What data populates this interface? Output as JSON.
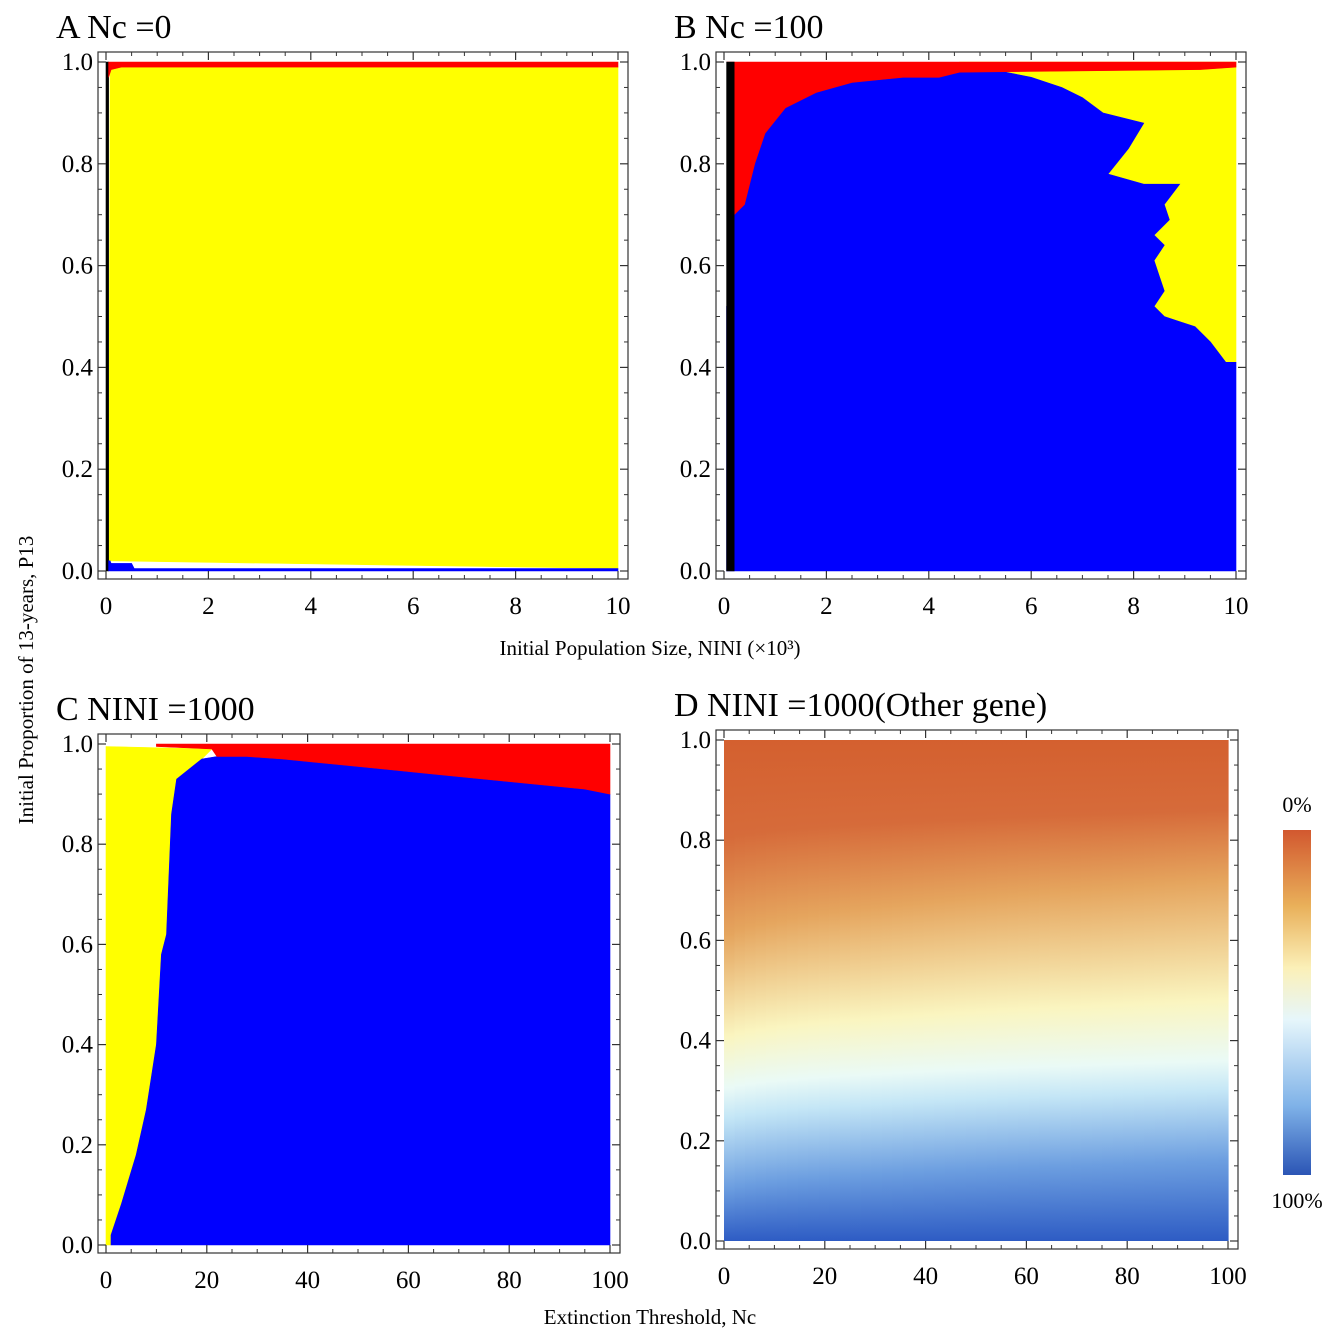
{
  "figure": {
    "y_axis_label": "Initial Proportion of 13-years, P13",
    "x_axis_label_top": "Initial Population Size, NINI (×10³)",
    "x_axis_label_bottom": "Extinction Threshold, Nc",
    "colorbar": {
      "top_label": "0%",
      "bottom_label": "100%",
      "colors": [
        "#2b55b5",
        "#7fb2e8",
        "#e6f6fb",
        "#fbf0b8",
        "#e9b05a",
        "#d2582f"
      ]
    }
  },
  "colors": {
    "yellow": "#ffff00",
    "blue": "#0000ff",
    "red": "#ff0000",
    "black": "#000000"
  },
  "chart_data": [
    {
      "panel": "A",
      "title": "A  Nc =0",
      "type": "heatmap",
      "x_range": [
        0,
        10
      ],
      "y_range": [
        0,
        1
      ],
      "x_ticks": [
        "0",
        "2",
        "4",
        "6",
        "8",
        "10"
      ],
      "y_ticks": [
        "0.0",
        "0.2",
        "0.4",
        "0.6",
        "0.8",
        "1.0"
      ],
      "regions": [
        {
          "color": "yellow",
          "polygon": [
            [
              0.05,
              0.02
            ],
            [
              10,
              0.005
            ],
            [
              10,
              0.99
            ],
            [
              0.08,
              0.99
            ]
          ]
        },
        {
          "color": "black",
          "polygon": [
            [
              0,
              0
            ],
            [
              0.05,
              0
            ],
            [
              0.05,
              1
            ],
            [
              0,
              1
            ]
          ]
        },
        {
          "color": "blue",
          "polygon": [
            [
              0.05,
              0
            ],
            [
              10,
              0
            ],
            [
              10,
              0.005
            ],
            [
              0.55,
              0.005
            ],
            [
              0.5,
              0.015
            ],
            [
              0.1,
              0.015
            ],
            [
              0.08,
              0.02
            ],
            [
              0.05,
              0.02
            ]
          ]
        },
        {
          "color": "red",
          "polygon": [
            [
              0.05,
              1
            ],
            [
              10,
              1
            ],
            [
              10,
              0.99
            ],
            [
              0.3,
              0.99
            ],
            [
              0.1,
              0.985
            ],
            [
              0.05,
              0.97
            ]
          ]
        }
      ]
    },
    {
      "panel": "B",
      "title": "B  Nc =100",
      "type": "heatmap",
      "x_range": [
        0,
        10
      ],
      "y_range": [
        0,
        1
      ],
      "x_ticks": [
        "0",
        "2",
        "4",
        "6",
        "8",
        "10"
      ],
      "y_ticks": [
        "0.0",
        "0.2",
        "0.4",
        "0.6",
        "0.8",
        "1.0"
      ],
      "regions": [
        {
          "color": "yellow",
          "polygon": [
            [
              4.6,
              1
            ],
            [
              10,
              1
            ],
            [
              10,
              0.41
            ],
            [
              9.8,
              0.41
            ],
            [
              9.5,
              0.45
            ],
            [
              9.2,
              0.48
            ],
            [
              8.9,
              0.49
            ],
            [
              8.6,
              0.5
            ],
            [
              8.4,
              0.52
            ],
            [
              8.6,
              0.55
            ],
            [
              8.5,
              0.58
            ],
            [
              8.4,
              0.61
            ],
            [
              8.6,
              0.64
            ],
            [
              8.4,
              0.66
            ],
            [
              8.7,
              0.69
            ],
            [
              8.6,
              0.72
            ],
            [
              8.9,
              0.76
            ],
            [
              8.2,
              0.76
            ],
            [
              7.5,
              0.78
            ],
            [
              7.9,
              0.83
            ],
            [
              8.2,
              0.88
            ],
            [
              7.4,
              0.9
            ],
            [
              7.0,
              0.93
            ],
            [
              6.6,
              0.95
            ],
            [
              6.0,
              0.97
            ],
            [
              5.5,
              0.98
            ],
            [
              4.6,
              0.98
            ]
          ]
        },
        {
          "color": "blue",
          "polygon": [
            [
              0.05,
              0
            ],
            [
              10,
              0
            ],
            [
              10,
              0.41
            ],
            [
              9.8,
              0.41
            ],
            [
              9.5,
              0.45
            ],
            [
              9.2,
              0.48
            ],
            [
              8.9,
              0.49
            ],
            [
              8.6,
              0.5
            ],
            [
              8.4,
              0.52
            ],
            [
              8.6,
              0.55
            ],
            [
              8.5,
              0.58
            ],
            [
              8.4,
              0.61
            ],
            [
              8.6,
              0.64
            ],
            [
              8.4,
              0.66
            ],
            [
              8.7,
              0.69
            ],
            [
              8.6,
              0.72
            ],
            [
              8.9,
              0.76
            ],
            [
              8.2,
              0.76
            ],
            [
              7.5,
              0.78
            ],
            [
              7.9,
              0.83
            ],
            [
              8.2,
              0.88
            ],
            [
              7.4,
              0.9
            ],
            [
              7.0,
              0.93
            ],
            [
              6.6,
              0.95
            ],
            [
              6.0,
              0.97
            ],
            [
              5.5,
              0.98
            ],
            [
              4.6,
              0.98
            ],
            [
              4.2,
              0.97
            ],
            [
              3.5,
              0.97
            ],
            [
              2.5,
              0.96
            ],
            [
              1.8,
              0.94
            ],
            [
              1.2,
              0.91
            ],
            [
              0.8,
              0.86
            ],
            [
              0.6,
              0.8
            ],
            [
              0.4,
              0.72
            ],
            [
              0.2,
              0.7
            ],
            [
              0.2,
              0.53
            ],
            [
              0.05,
              0.52
            ]
          ]
        },
        {
          "color": "red",
          "polygon": [
            [
              0.05,
              1
            ],
            [
              10,
              1
            ],
            [
              10,
              0.99
            ],
            [
              9.3,
              0.985
            ],
            [
              4.6,
              0.98
            ],
            [
              4.2,
              0.97
            ],
            [
              3.5,
              0.97
            ],
            [
              2.5,
              0.96
            ],
            [
              1.8,
              0.94
            ],
            [
              1.2,
              0.91
            ],
            [
              0.8,
              0.86
            ],
            [
              0.6,
              0.8
            ],
            [
              0.4,
              0.72
            ],
            [
              0.2,
              0.7
            ],
            [
              0.2,
              1
            ]
          ]
        },
        {
          "color": "black",
          "polygon": [
            [
              0.05,
              0
            ],
            [
              0.2,
              0
            ],
            [
              0.2,
              1
            ],
            [
              0.05,
              1
            ]
          ]
        }
      ]
    },
    {
      "panel": "C",
      "title": "C  NINI =1000",
      "type": "heatmap",
      "x_range": [
        0,
        100
      ],
      "y_range": [
        0,
        1
      ],
      "x_ticks": [
        "0",
        "20",
        "40",
        "60",
        "80",
        "100"
      ],
      "y_ticks": [
        "0.0",
        "0.2",
        "0.4",
        "0.6",
        "0.8",
        "1.0"
      ],
      "regions": [
        {
          "color": "yellow",
          "polygon": [
            [
              0,
              0
            ],
            [
              0,
              0.995
            ],
            [
              21,
              0.99
            ],
            [
              19,
              0.97
            ],
            [
              14,
              0.93
            ],
            [
              13,
              0.86
            ],
            [
              12,
              0.62
            ],
            [
              11,
              0.58
            ],
            [
              10,
              0.4
            ],
            [
              8,
              0.27
            ],
            [
              6,
              0.18
            ],
            [
              3,
              0.08
            ],
            [
              1,
              0.02
            ],
            [
              1,
              0
            ]
          ]
        },
        {
          "color": "blue",
          "polygon": [
            [
              1,
              0
            ],
            [
              100,
              0
            ],
            [
              100,
              0.9
            ],
            [
              95,
              0.91
            ],
            [
              85,
              0.92
            ],
            [
              75,
              0.93
            ],
            [
              65,
              0.94
            ],
            [
              55,
              0.95
            ],
            [
              45,
              0.96
            ],
            [
              35,
              0.97
            ],
            [
              28,
              0.975
            ],
            [
              22,
              0.975
            ],
            [
              19,
              0.97
            ],
            [
              14,
              0.93
            ],
            [
              13,
              0.86
            ],
            [
              12,
              0.62
            ],
            [
              11,
              0.58
            ],
            [
              10,
              0.4
            ],
            [
              8,
              0.27
            ],
            [
              6,
              0.18
            ],
            [
              3,
              0.08
            ],
            [
              1,
              0.02
            ]
          ]
        },
        {
          "color": "red",
          "polygon": [
            [
              10,
              1
            ],
            [
              100,
              1
            ],
            [
              100,
              0.9
            ],
            [
              95,
              0.91
            ],
            [
              85,
              0.92
            ],
            [
              75,
              0.93
            ],
            [
              65,
              0.94
            ],
            [
              55,
              0.95
            ],
            [
              45,
              0.96
            ],
            [
              35,
              0.97
            ],
            [
              28,
              0.975
            ],
            [
              22,
              0.975
            ],
            [
              21,
              0.99
            ],
            [
              10,
              0.995
            ]
          ]
        }
      ]
    },
    {
      "panel": "D",
      "title": "D  NINI =1000(Other gene)",
      "type": "heatmap",
      "x_range": [
        0,
        100
      ],
      "y_range": [
        0,
        1
      ],
      "x_ticks": [
        "0",
        "20",
        "40",
        "60",
        "80",
        "100"
      ],
      "y_ticks": [
        "0.0",
        "0.2",
        "0.4",
        "0.6",
        "0.8",
        "1.0"
      ],
      "gradient_stops": [
        {
          "y_left": 0.0,
          "y_right": 0.0,
          "color": "#2e5cc4"
        },
        {
          "y_left": 0.1,
          "y_right": 0.16,
          "color": "#6c9ee0"
        },
        {
          "y_left": 0.24,
          "y_right": 0.3,
          "color": "#c4e6f6"
        },
        {
          "y_left": 0.3,
          "y_right": 0.36,
          "color": "#eafaf6"
        },
        {
          "y_left": 0.4,
          "y_right": 0.48,
          "color": "#faf5c0"
        },
        {
          "y_left": 0.6,
          "y_right": 0.72,
          "color": "#e5a55e"
        },
        {
          "y_left": 0.8,
          "y_right": 0.86,
          "color": "#d66b3a"
        },
        {
          "y_left": 1.0,
          "y_right": 1.0,
          "color": "#d4602f"
        }
      ]
    }
  ]
}
